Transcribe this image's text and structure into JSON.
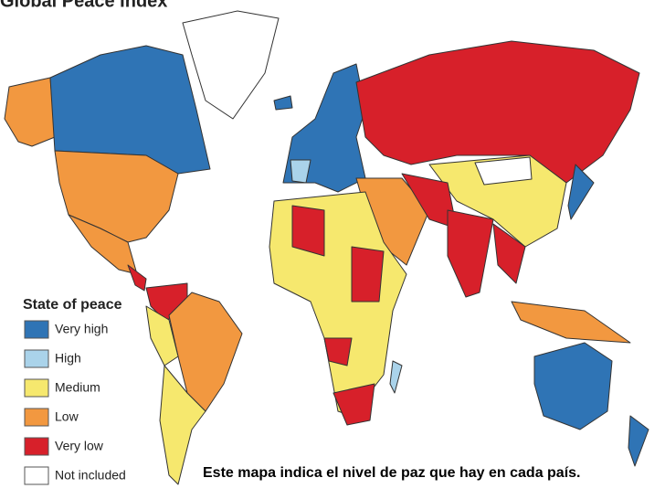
{
  "title": "Global Peace Index",
  "legend": {
    "title": "State of peace",
    "items": [
      {
        "label": "Very high",
        "color": "#2f74b5"
      },
      {
        "label": "High",
        "color": "#aad3ea"
      },
      {
        "label": "Medium",
        "color": "#f6e86e"
      },
      {
        "label": "Low",
        "color": "#f29840"
      },
      {
        "label": "Very low",
        "color": "#d7202a"
      },
      {
        "label": "Not included",
        "color": "#ffffff"
      }
    ]
  },
  "caption": "Este mapa indica el nivel de paz que hay en cada país."
}
